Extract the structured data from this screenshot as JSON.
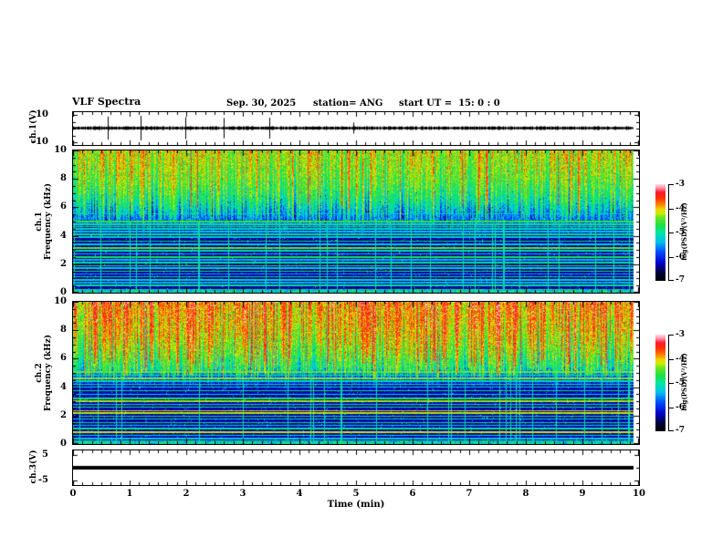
{
  "header": {
    "title": "VLF Spectra",
    "date": "Sep. 30, 2025",
    "station": "station= ANG",
    "start_ut": "start UT =  15: 0 : 0"
  },
  "x_axis": {
    "title": "Time (min)",
    "major_tick_labels": [
      "0",
      "1",
      "2",
      "3",
      "4",
      "5",
      "6",
      "7",
      "8",
      "9",
      "10"
    ],
    "range": [
      0,
      10
    ],
    "minor_divisions": 6
  },
  "panels": {
    "ch1_wave": {
      "ylabel": "ch.1(V)",
      "tick_labels": [
        "10",
        "-10"
      ],
      "tick_values": [
        10,
        -10
      ],
      "minor_values": [
        5,
        0,
        -5
      ],
      "range": [
        -12,
        12
      ]
    },
    "spec1": {
      "ylabel_lines": [
        "ch.1",
        "Frequency (kHz)"
      ],
      "tick_labels": [
        "10",
        "8",
        "6",
        "4",
        "2",
        "0"
      ],
      "tick_values": [
        10,
        8,
        6,
        4,
        2,
        0
      ],
      "range": [
        0,
        10
      ]
    },
    "spec2": {
      "ylabel_lines": [
        "ch.2",
        "Frequency (kHz)"
      ],
      "tick_labels": [
        "10",
        "8",
        "6",
        "4",
        "2",
        "0"
      ],
      "tick_values": [
        10,
        8,
        6,
        4,
        2,
        0
      ],
      "range": [
        0,
        10
      ]
    },
    "ch3_wave": {
      "ylabel": "ch.3(V)",
      "tick_labels": [
        "5",
        "-5"
      ],
      "tick_values": [
        5,
        -5
      ],
      "minor_values": [
        0
      ],
      "range": [
        -7,
        7
      ]
    }
  },
  "colorbar": {
    "unit_label": "log(PSD)(V²/Hz)",
    "tick_labels": [
      "-3",
      "-4",
      "-5",
      "-6",
      "-7"
    ],
    "tick_values": [
      -3,
      -4,
      -5,
      -6,
      -7
    ]
  },
  "colors": {
    "foreground": "#000000",
    "background": "#ffffff",
    "palette_stops": [
      {
        "v": 0.0,
        "c": "#000006"
      },
      {
        "v": 0.08,
        "c": "#00003a"
      },
      {
        "v": 0.18,
        "c": "#0000c8"
      },
      {
        "v": 0.3,
        "c": "#0050ff"
      },
      {
        "v": 0.4,
        "c": "#00c0f0"
      },
      {
        "v": 0.5,
        "c": "#00e8a0"
      },
      {
        "v": 0.58,
        "c": "#20e040"
      },
      {
        "v": 0.66,
        "c": "#70e820"
      },
      {
        "v": 0.7,
        "c": "#c8f000"
      },
      {
        "v": 0.74,
        "c": "#f0d800"
      },
      {
        "v": 0.8,
        "c": "#ff7800"
      },
      {
        "v": 0.86,
        "c": "#ff3000"
      },
      {
        "v": 0.92,
        "c": "#ff1830"
      },
      {
        "v": 0.96,
        "c": "#ff88a0"
      },
      {
        "v": 1.0,
        "c": "#ffd8e0"
      }
    ]
  },
  "chart_data": [
    {
      "type": "line",
      "title": "ch.1(V) time series",
      "xlabel": "Time (min)",
      "ylabel": "ch.1(V)",
      "xlim": [
        0,
        10
      ],
      "ylim": [
        -10,
        10
      ],
      "y_ticks": [
        10,
        -10
      ],
      "description": "Noisy near-zero voltage trace (~±1 V) with sparse impulsive spikes up to ~±8 V; record ends at ~9.9 min",
      "render": {
        "seed": 303,
        "spike_prob": 0.012,
        "base_amp": 1.3,
        "spike_amp_min": 5,
        "spike_amp_max": 15
      }
    },
    {
      "type": "heatmap",
      "title": "ch.1 VLF spectrogram",
      "xlabel": "Time (min)",
      "ylabel": "Frequency (kHz)",
      "zlabel": "log(PSD)(V²/Hz)",
      "xlim": [
        0,
        10
      ],
      "ylim": [
        0,
        10
      ],
      "zlim": [
        -7,
        -3
      ],
      "legend_position": "right-colorbar",
      "description": "Broadband hiss band above ~5 kHz (green/yellow, intermittent red sferic streaks); dark blue/black below 5 kHz crossed by narrow horizontal harmonic/transmitter lines and vertical sferic streaks; bright noise band near 0 kHz",
      "features": {
        "knee_kHz": 5.15,
        "horizontal_lines": [
          {
            "f": 5.55,
            "v": 0.4
          },
          {
            "f": 5.0,
            "v": 0.6
          },
          {
            "f": 4.82,
            "v": 0.5
          },
          {
            "f": 4.65,
            "v": 0.56
          },
          {
            "f": 4.5,
            "v": 0.46
          },
          {
            "f": 4.3,
            "v": 0.42
          },
          {
            "f": 4.12,
            "v": 0.52
          },
          {
            "f": 3.9,
            "v": 0.44
          },
          {
            "f": 3.62,
            "v": 0.55
          },
          {
            "f": 3.4,
            "v": 0.44
          },
          {
            "f": 3.15,
            "v": 0.64
          },
          {
            "f": 2.95,
            "v": 0.48
          },
          {
            "f": 2.72,
            "v": 0.44
          },
          {
            "f": 2.5,
            "v": 0.56
          },
          {
            "f": 2.3,
            "v": 0.4
          },
          {
            "f": 2.1,
            "v": 0.5
          },
          {
            "f": 1.9,
            "v": 0.6
          },
          {
            "f": 1.72,
            "v": 0.44
          },
          {
            "f": 1.5,
            "v": 0.54
          },
          {
            "f": 1.3,
            "v": 0.4
          },
          {
            "f": 1.12,
            "v": 0.5
          },
          {
            "f": 0.9,
            "v": 0.46
          },
          {
            "f": 0.72,
            "v": 0.4
          },
          {
            "f": 0.52,
            "v": 0.5
          }
        ],
        "render": {
          "seed": 101,
          "top_base": 0.6,
          "top_noise": 0.09,
          "low_base": 0.1,
          "low_noise": 0.1,
          "sferic_prob": 0.045,
          "red_prob": 0.02,
          "knee_dim": 0.26
        }
      }
    },
    {
      "type": "heatmap",
      "title": "ch.2 VLF spectrogram",
      "xlabel": "Time (min)",
      "ylabel": "Frequency (kHz)",
      "zlabel": "log(PSD)(V²/Hz)",
      "xlim": [
        0,
        10
      ],
      "ylim": [
        0,
        10
      ],
      "zlim": [
        -7,
        -3
      ],
      "legend_position": "right-colorbar",
      "description": "Hotter hiss band above ~5 kHz (yellow/orange with frequent red streaks); dark region below with narrow horizontal lines including bright yellow lines near 2.2-2.4 kHz; bright noise band near 0 kHz",
      "features": {
        "knee_kHz": 4.95,
        "horizontal_lines": [
          {
            "f": 5.5,
            "v": 0.42
          },
          {
            "f": 5.05,
            "v": 0.64
          },
          {
            "f": 4.85,
            "v": 0.52
          },
          {
            "f": 4.6,
            "v": 0.66
          },
          {
            "f": 4.42,
            "v": 0.48
          },
          {
            "f": 4.2,
            "v": 0.52
          },
          {
            "f": 4.0,
            "v": 0.46
          },
          {
            "f": 3.75,
            "v": 0.55
          },
          {
            "f": 3.5,
            "v": 0.46
          },
          {
            "f": 3.22,
            "v": 0.58
          },
          {
            "f": 3.0,
            "v": 0.68
          },
          {
            "f": 2.8,
            "v": 0.5
          },
          {
            "f": 2.6,
            "v": 0.55
          },
          {
            "f": 2.35,
            "v": 0.74
          },
          {
            "f": 2.18,
            "v": 0.7
          },
          {
            "f": 1.95,
            "v": 0.55
          },
          {
            "f": 1.75,
            "v": 0.48
          },
          {
            "f": 1.52,
            "v": 0.56
          },
          {
            "f": 1.3,
            "v": 0.44
          },
          {
            "f": 1.1,
            "v": 0.52
          },
          {
            "f": 0.82,
            "v": 0.72
          },
          {
            "f": 0.6,
            "v": 0.48
          },
          {
            "f": 0.4,
            "v": 0.44
          }
        ],
        "render": {
          "seed": 202,
          "top_base": 0.7,
          "top_noise": 0.1,
          "low_base": 0.11,
          "low_noise": 0.11,
          "sferic_prob": 0.05,
          "red_prob": 0.055,
          "knee_dim": 0.18
        }
      }
    },
    {
      "type": "line",
      "title": "ch.3(V) time series",
      "xlabel": "Time (min)",
      "ylabel": "ch.3(V)",
      "xlim": [
        0,
        10
      ],
      "ylim": [
        -5,
        5
      ],
      "y_ticks": [
        5,
        -5
      ],
      "description": "Constant ~0 V thick flat line across full record"
    }
  ]
}
